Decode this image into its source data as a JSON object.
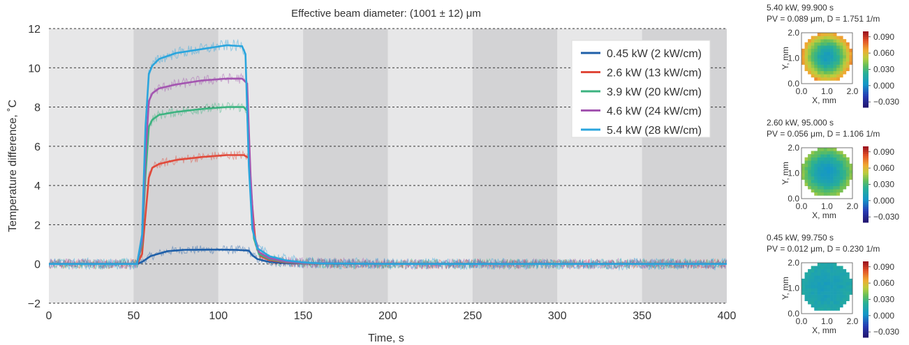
{
  "chart_data": [
    {
      "type": "line",
      "title": "Effective beam diameter: (1001 ± 12) μm",
      "xlabel": "Time, s",
      "ylabel": "Temperature difference, ˚C",
      "xlim": [
        0,
        400
      ],
      "ylim": [
        -2,
        12
      ],
      "xticks": [
        0,
        50,
        100,
        150,
        200,
        250,
        300,
        350,
        400
      ],
      "xtick_labels": [
        "0",
        "50",
        "100",
        "150",
        "200",
        "250",
        "300",
        "350",
        "400"
      ],
      "yticks": [
        -2,
        0,
        2,
        4,
        6,
        8,
        10,
        12
      ],
      "ytick_labels": [
        "−2",
        "0",
        "2",
        "4",
        "6",
        "8",
        "10",
        "12"
      ],
      "grid": "horizontal dashed",
      "background_bands": "alternating grey every 50 s",
      "legend_position": "top-right",
      "series": [
        {
          "name": "0.45 kW (2 kW/cm)",
          "color": "#1f5fa8",
          "noise": 0.22,
          "points": [
            [
              0,
              0
            ],
            [
              52,
              0
            ],
            [
              55,
              0.1
            ],
            [
              60,
              0.4
            ],
            [
              70,
              0.65
            ],
            [
              80,
              0.72
            ],
            [
              100,
              0.73
            ],
            [
              110,
              0.72
            ],
            [
              118,
              0.68
            ],
            [
              120,
              0.45
            ],
            [
              123,
              0.25
            ],
            [
              130,
              0.1
            ],
            [
              140,
              0.04
            ],
            [
              150,
              0.02
            ],
            [
              200,
              0
            ],
            [
              400,
              0
            ]
          ]
        },
        {
          "name": "2.6 kW (13 kW/cm)",
          "color": "#e0493a",
          "noise": 0.24,
          "points": [
            [
              0,
              0
            ],
            [
              52,
              0
            ],
            [
              55,
              0.5
            ],
            [
              57,
              2.5
            ],
            [
              59,
              4.4
            ],
            [
              61,
              4.9
            ],
            [
              65,
              5.1
            ],
            [
              75,
              5.3
            ],
            [
              90,
              5.45
            ],
            [
              105,
              5.55
            ],
            [
              115,
              5.55
            ],
            [
              118,
              5.4
            ],
            [
              120,
              3.0
            ],
            [
              122,
              1.0
            ],
            [
              125,
              0.4
            ],
            [
              130,
              0.2
            ],
            [
              140,
              0.08
            ],
            [
              150,
              0.03
            ],
            [
              200,
              0
            ],
            [
              400,
              0
            ]
          ]
        },
        {
          "name": "3.9 kW (20 kW/cm)",
          "color": "#3cb380",
          "noise": 0.26,
          "points": [
            [
              0,
              0
            ],
            [
              52,
              0
            ],
            [
              55,
              1.0
            ],
            [
              57,
              4.5
            ],
            [
              59,
              7.0
            ],
            [
              61,
              7.35
            ],
            [
              65,
              7.6
            ],
            [
              75,
              7.75
            ],
            [
              90,
              7.9
            ],
            [
              105,
              8.0
            ],
            [
              115,
              8.0
            ],
            [
              117,
              7.8
            ],
            [
              119,
              4.0
            ],
            [
              121,
              1.3
            ],
            [
              124,
              0.5
            ],
            [
              130,
              0.25
            ],
            [
              140,
              0.1
            ],
            [
              150,
              0.04
            ],
            [
              200,
              0
            ],
            [
              400,
              0
            ]
          ]
        },
        {
          "name": "4.6 kW (24 kW/cm)",
          "color": "#a355b0",
          "noise": 0.27,
          "points": [
            [
              0,
              0
            ],
            [
              52,
              0
            ],
            [
              55,
              1.2
            ],
            [
              57,
              5.5
            ],
            [
              59,
              8.3
            ],
            [
              61,
              8.7
            ],
            [
              65,
              8.95
            ],
            [
              75,
              9.15
            ],
            [
              90,
              9.35
            ],
            [
              105,
              9.45
            ],
            [
              114,
              9.45
            ],
            [
              117,
              9.2
            ],
            [
              119,
              4.5
            ],
            [
              121,
              1.5
            ],
            [
              124,
              0.6
            ],
            [
              130,
              0.3
            ],
            [
              140,
              0.12
            ],
            [
              150,
              0.05
            ],
            [
              200,
              0
            ],
            [
              400,
              0
            ]
          ]
        },
        {
          "name": "5.4 kW (28 kW/cm)",
          "color": "#2aa5dd",
          "noise": 0.3,
          "points": [
            [
              0,
              0
            ],
            [
              52,
              0
            ],
            [
              55,
              1.5
            ],
            [
              57,
              7.0
            ],
            [
              59,
              9.7
            ],
            [
              61,
              10.1
            ],
            [
              65,
              10.45
            ],
            [
              75,
              10.75
            ],
            [
              90,
              10.95
            ],
            [
              105,
              11.15
            ],
            [
              114,
              11.1
            ],
            [
              116,
              10.7
            ],
            [
              118,
              5.0
            ],
            [
              120,
              1.8
            ],
            [
              123,
              0.8
            ],
            [
              130,
              0.4
            ],
            [
              140,
              0.18
            ],
            [
              150,
              0.08
            ],
            [
              160,
              0.03
            ],
            [
              200,
              0
            ],
            [
              400,
              0
            ]
          ]
        }
      ]
    },
    {
      "type": "heatmap",
      "title": "5.40 kW, 99.900 s",
      "subtitle": "PV = 0.089 μm, D = 1.751  1/m",
      "xlabel": "X, mm",
      "ylabel": "Y, mm",
      "xticks": [
        "0.0",
        "1.0",
        "2.0"
      ],
      "yticks": [
        "0.0",
        "1.0",
        "2.0"
      ],
      "xlim": [
        0,
        2
      ],
      "ylim": [
        0,
        2
      ],
      "colorbar_ticks": [
        "0.090",
        "0.060",
        "0.030",
        "0.000",
        "−0.030"
      ],
      "clim": [
        -0.04,
        0.1
      ],
      "center_value": 0.006,
      "edge_value": 0.07
    },
    {
      "type": "heatmap",
      "title": "2.60 kW, 95.000 s",
      "subtitle": "PV = 0.056 μm, D = 1.106  1/m",
      "xlabel": "X, mm",
      "ylabel": "Y, mm",
      "xticks": [
        "0.0",
        "1.0",
        "2.0"
      ],
      "yticks": [
        "0.0",
        "1.0",
        "2.0"
      ],
      "xlim": [
        0,
        2
      ],
      "ylim": [
        0,
        2
      ],
      "colorbar_ticks": [
        "0.090",
        "0.060",
        "0.030",
        "0.000",
        "−0.030"
      ],
      "clim": [
        -0.04,
        0.1
      ],
      "center_value": 0.003,
      "edge_value": 0.045
    },
    {
      "type": "heatmap",
      "title": "0.45 kW, 99.750 s",
      "subtitle": "PV = 0.012 μm, D = 0.230  1/m",
      "xlabel": "X, mm",
      "ylabel": "Y, mm",
      "xticks": [
        "0.0",
        "1.0",
        "2.0"
      ],
      "yticks": [
        "0.0",
        "1.0",
        "2.0"
      ],
      "xlim": [
        0,
        2
      ],
      "ylim": [
        0,
        2
      ],
      "colorbar_ticks": [
        "0.090",
        "0.060",
        "0.030",
        "0.000",
        "−0.030"
      ],
      "clim": [
        -0.04,
        0.1
      ],
      "center_value": 0.008,
      "edge_value": 0.017
    }
  ]
}
